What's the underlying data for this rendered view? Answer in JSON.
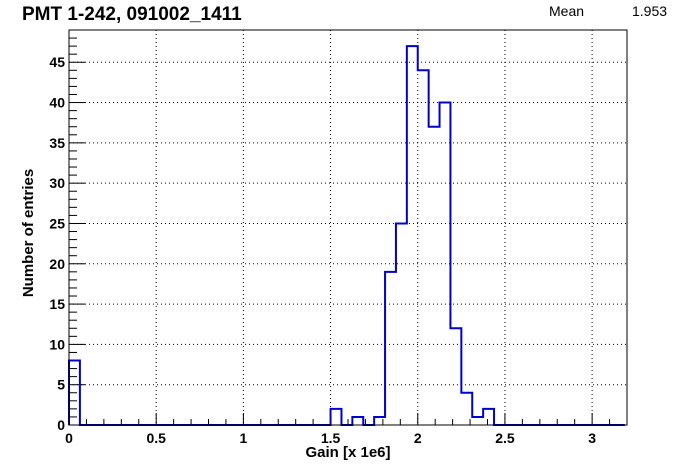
{
  "title": "PMT 1-242,  091002_1411",
  "stats": {
    "label": "Mean",
    "value": "1.953"
  },
  "chart_data": {
    "type": "histogram",
    "xlabel": "Gain [x 1e6]",
    "ylabel": "Number of entries",
    "xlim": [
      0,
      3.2
    ],
    "ylim": [
      0,
      49
    ],
    "grid": true,
    "line_color": "#0000cc",
    "x_ticks": [
      "0",
      "0.5",
      "1",
      "1.5",
      "2",
      "2.5",
      "3"
    ],
    "y_ticks": [
      "0",
      "5",
      "10",
      "15",
      "20",
      "25",
      "30",
      "35",
      "40",
      "45"
    ],
    "bin_width": 0.0625,
    "bin_edges_start": 0,
    "counts": [
      8,
      0,
      0,
      0,
      0,
      0,
      0,
      0,
      0,
      0,
      0,
      0,
      0,
      0,
      0,
      0,
      0,
      0,
      0,
      0,
      0,
      0,
      0,
      0,
      2,
      0,
      1,
      0,
      1,
      19,
      25,
      47,
      44,
      37,
      40,
      12,
      4,
      1,
      2,
      0,
      0,
      0,
      0,
      0,
      0,
      0,
      0,
      0,
      0,
      0,
      0
    ]
  }
}
